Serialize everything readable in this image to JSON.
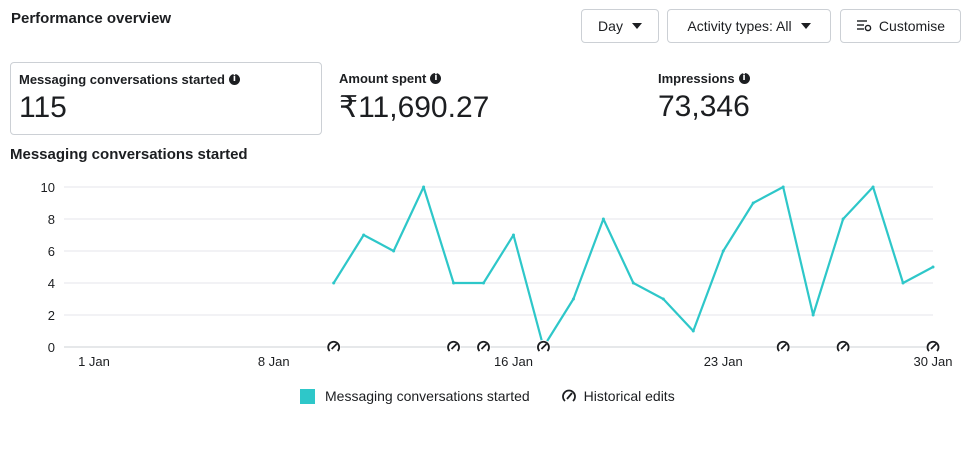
{
  "header": {
    "title": "Performance overview",
    "day_label": "Day",
    "activity_label": "Activity types: All",
    "customise_label": "Customise"
  },
  "metrics": [
    {
      "label": "Messaging conversations started",
      "value": "115"
    },
    {
      "label": "Amount spent",
      "value": "₹11,690.27"
    },
    {
      "label": "Impressions",
      "value": "73,346"
    }
  ],
  "chart_title": "Messaging conversations started",
  "legend": {
    "series": "Messaging conversations started",
    "edits": "Historical edits"
  },
  "colors": {
    "series": "#2ec7c9",
    "grid": "#e4e6eb",
    "axis_text": "#1c1e21"
  },
  "chart_data": {
    "type": "line",
    "x_ticks": [
      "1 Jan",
      "8 Jan",
      "16 Jan",
      "23 Jan",
      "30 Jan"
    ],
    "x_tick_days": [
      1,
      8,
      16,
      23,
      30
    ],
    "ylim": [
      0,
      10
    ],
    "y_ticks": [
      0,
      2,
      4,
      6,
      8,
      10
    ],
    "grid": true,
    "legend_position": "bottom",
    "series": [
      {
        "name": "Messaging conversations started",
        "x": [
          "10 Jan",
          "11 Jan",
          "12 Jan",
          "13 Jan",
          "14 Jan",
          "15 Jan",
          "16 Jan",
          "17 Jan",
          "18 Jan",
          "19 Jan",
          "20 Jan",
          "21 Jan",
          "22 Jan",
          "23 Jan",
          "24 Jan",
          "25 Jan",
          "26 Jan",
          "27 Jan",
          "28 Jan",
          "29 Jan",
          "30 Jan"
        ],
        "x_day": [
          10,
          11,
          12,
          13,
          14,
          15,
          16,
          17,
          18,
          19,
          20,
          21,
          22,
          23,
          24,
          25,
          26,
          27,
          28,
          29,
          30
        ],
        "values": [
          4,
          7,
          6,
          10,
          4,
          4,
          7,
          0,
          3,
          8,
          4,
          3,
          1,
          6,
          9,
          10,
          2,
          8,
          10,
          4,
          5
        ]
      }
    ],
    "historical_edits_days": [
      10,
      14,
      15,
      17,
      25,
      27,
      30
    ]
  }
}
